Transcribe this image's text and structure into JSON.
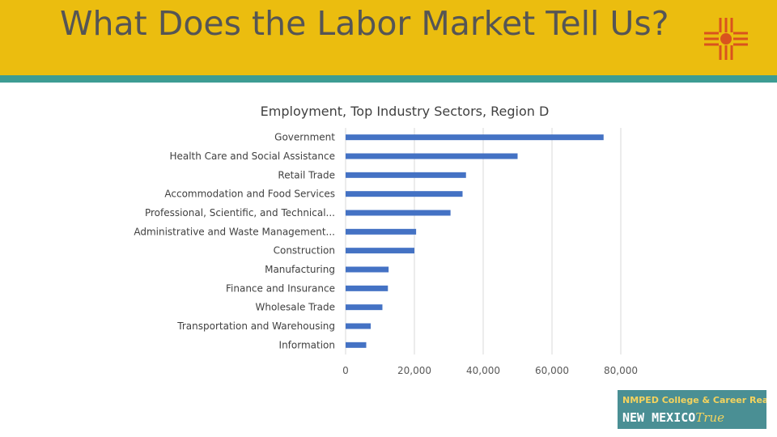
{
  "slide": {
    "title": "What Does the Labor Market Tell Us?",
    "colors": {
      "header": "#ebbd0f",
      "rule": "#3d9c93",
      "bar": "#4472c4",
      "zia": "#d9531e"
    }
  },
  "logo": {
    "icon": "zia-sun-symbol-icon"
  },
  "badge": {
    "line1": "NMPED College & Career Readiness is",
    "line2_a": "NEW MEXICO",
    "line2_b": "True"
  },
  "chart_data": {
    "type": "bar",
    "orientation": "horizontal",
    "title": "Employment, Top Industry Sectors, Region D",
    "categories": [
      "Government",
      "Health Care and Social Assistance",
      "Retail Trade",
      "Accommodation and Food Services",
      "Professional, Scientific, and Technical...",
      "Administrative and Waste Management...",
      "Construction",
      "Manufacturing",
      "Finance and Insurance",
      "Wholesale Trade",
      "Transportation and Warehousing",
      "Information"
    ],
    "values": [
      75000,
      50000,
      35000,
      34000,
      30500,
      20500,
      20000,
      12500,
      12300,
      10700,
      7300,
      6000
    ],
    "xlim": [
      0,
      80000
    ],
    "xticks": [
      {
        "value": 0,
        "label": "0"
      },
      {
        "value": 20000,
        "label": "20,000"
      },
      {
        "value": 40000,
        "label": "40,000"
      },
      {
        "value": 60000,
        "label": "60,000"
      },
      {
        "value": 80000,
        "label": "80,000"
      }
    ],
    "grid": true
  }
}
